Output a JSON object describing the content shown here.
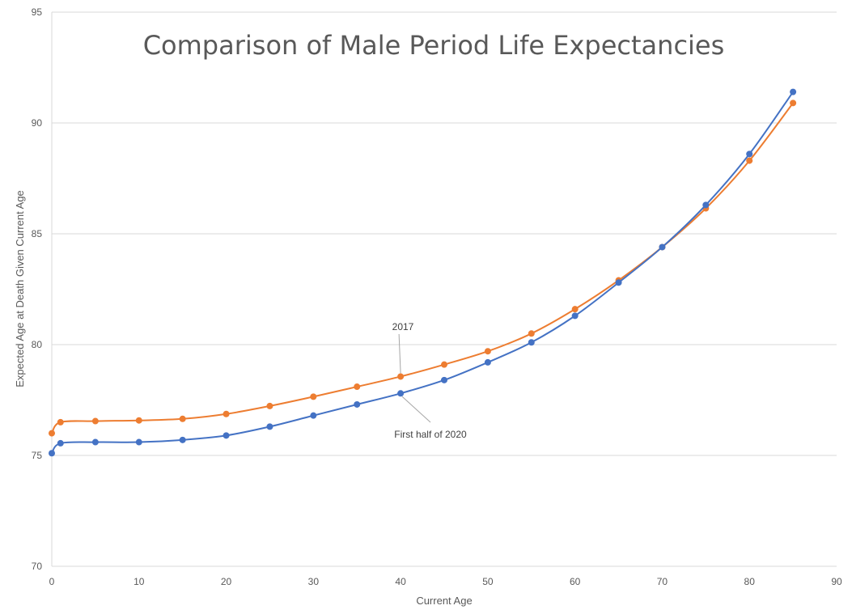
{
  "chart_data": {
    "type": "line",
    "title": "Comparison of Male Period Life Expectancies",
    "xlabel": "Current Age",
    "ylabel": "Expected Age at Death Given Current Age",
    "xlim": [
      0,
      90
    ],
    "ylim": [
      70,
      95
    ],
    "xticks": [
      0,
      10,
      20,
      30,
      40,
      50,
      60,
      70,
      80,
      90
    ],
    "yticks": [
      70,
      75,
      80,
      85,
      90,
      95
    ],
    "grid": "horizontal",
    "legend": "none",
    "x": [
      0,
      1,
      5,
      10,
      15,
      20,
      25,
      30,
      35,
      40,
      45,
      50,
      55,
      60,
      65,
      70,
      75,
      80,
      85
    ],
    "series": [
      {
        "name": "First half of 2020",
        "color": "#4472c4",
        "values": [
          75.1,
          75.55,
          75.6,
          75.6,
          75.7,
          75.9,
          76.3,
          76.8,
          77.3,
          77.8,
          78.4,
          79.2,
          80.1,
          81.3,
          82.8,
          84.4,
          86.3,
          88.6,
          91.4
        ]
      },
      {
        "name": "2017",
        "color": "#ed7d31",
        "values": [
          76.0,
          76.5,
          76.55,
          76.58,
          76.65,
          76.87,
          77.23,
          77.65,
          78.1,
          78.56,
          79.1,
          79.7,
          80.5,
          81.6,
          82.9,
          84.4,
          86.15,
          88.3,
          90.9
        ]
      }
    ],
    "annotations": [
      {
        "text": "2017",
        "series": "2017",
        "x": 40
      },
      {
        "text": "First half of 2020",
        "series": "First half of 2020",
        "x": 40
      }
    ]
  }
}
